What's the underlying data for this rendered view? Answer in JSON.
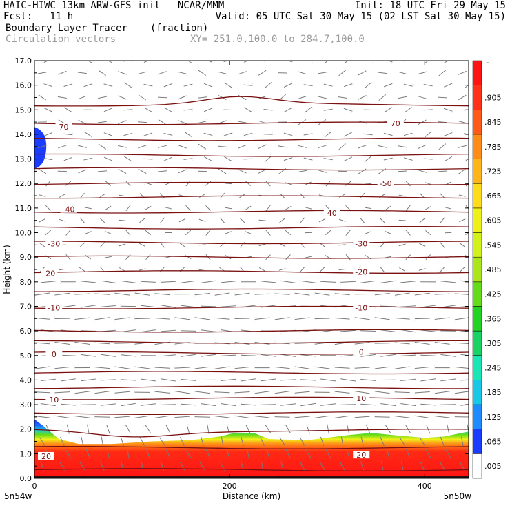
{
  "header": {
    "model": "HAIC-HIWC 13km ARW-GFS init   NCAR/MMM",
    "init": "Init: 18 UTC Fri 29 May 15",
    "fcst": "Fcst:   11 h",
    "valid": "Valid: 05 UTC Sat 30 May 15 (02 LST Sat 30 May 15)",
    "field1": "Boundary Layer Tracer",
    "field1_units": "(fraction)",
    "field2": "Circulation vectors",
    "xsection": "XY= 251.0,100.0 to 284.7,100.0"
  },
  "chart_data": {
    "type": "heatmap",
    "title": "Boundary Layer Tracer",
    "xlabel": "Distance (km)",
    "ylabel": "Height (km)",
    "xlim": [
      0,
      445
    ],
    "ylim": [
      0,
      17
    ],
    "x_ticks": [
      0,
      200,
      400
    ],
    "y_ticks": [
      "0.0",
      "1.0",
      "2.0",
      "3.0",
      "4.0",
      "5.0",
      "6.0",
      "7.0",
      "8.0",
      "9.0",
      "10.0",
      "11.0",
      "12.0",
      "13.0",
      "14.0",
      "15.0",
      "16.0",
      "17.0"
    ],
    "x_endpoints": {
      "left": "5n54w",
      "right": "5n50w"
    },
    "tracer_top_profile": {
      "x": [
        0,
        10,
        25,
        45,
        80,
        120,
        160,
        190,
        205,
        225,
        240,
        280,
        320,
        345,
        370,
        400,
        420,
        445
      ],
      "height_km": [
        2.4,
        2.1,
        1.6,
        1.4,
        1.4,
        1.5,
        1.55,
        1.7,
        1.85,
        1.85,
        1.6,
        1.55,
        1.75,
        1.85,
        1.75,
        1.65,
        1.7,
        1.9
      ]
    },
    "upper_blob": {
      "x_range": [
        0,
        10
      ],
      "height_range_km": [
        12.6,
        14.3
      ]
    },
    "contour_labels": [
      {
        "text": "70",
        "x": 30,
        "y": 14.3
      },
      {
        "text": "70",
        "x": 370,
        "y": 14.45
      },
      {
        "text": "-50",
        "x": 360,
        "y": 12.0
      },
      {
        "text": "-40",
        "x": 35,
        "y": 10.95
      },
      {
        "text": "40",
        "x": 305,
        "y": 10.8
      },
      {
        "text": "-30",
        "x": 20,
        "y": 9.55
      },
      {
        "text": "-30",
        "x": 335,
        "y": 9.55
      },
      {
        "text": "-20",
        "x": 15,
        "y": 8.35
      },
      {
        "text": "-20",
        "x": 335,
        "y": 8.4
      },
      {
        "text": "-10",
        "x": 20,
        "y": 6.95
      },
      {
        "text": "-10",
        "x": 335,
        "y": 6.95
      },
      {
        "text": "0",
        "x": 20,
        "y": 5.05
      },
      {
        "text": "0",
        "x": 335,
        "y": 5.15
      },
      {
        "text": "10",
        "x": 20,
        "y": 3.2
      },
      {
        "text": "10",
        "x": 335,
        "y": 3.25
      },
      {
        "text": "20",
        "x": 12,
        "y": 0.9
      },
      {
        "text": "20",
        "x": 335,
        "y": 0.95
      }
    ],
    "isotherm_heights_km": [
      0.35,
      1.25,
      1.95,
      2.65,
      3.25,
      3.7,
      4.3,
      5.1,
      5.55,
      6.0,
      6.95,
      7.65,
      8.4,
      9.0,
      9.6,
      10.2,
      10.85,
      11.45,
      12.0,
      12.6,
      13.15,
      13.8,
      14.45,
      15.2
    ],
    "colorbar": {
      "labels": [
        ".005",
        ".065",
        ".125",
        ".185",
        ".245",
        ".305",
        ".365",
        ".425",
        ".485",
        ".545",
        ".605",
        ".665",
        ".725",
        ".785",
        ".845",
        ".905"
      ],
      "colors": [
        "#ffffff",
        "#1a3cff",
        "#1e8cff",
        "#19c8e6",
        "#19e6b4",
        "#19d264",
        "#23d223",
        "#64dc19",
        "#aae619",
        "#d2f019",
        "#f0f019",
        "#ffdc19",
        "#ffb419",
        "#ff8c19",
        "#ff5a19",
        "#ff3219",
        "#ff1414"
      ],
      "top_label": "–"
    }
  }
}
